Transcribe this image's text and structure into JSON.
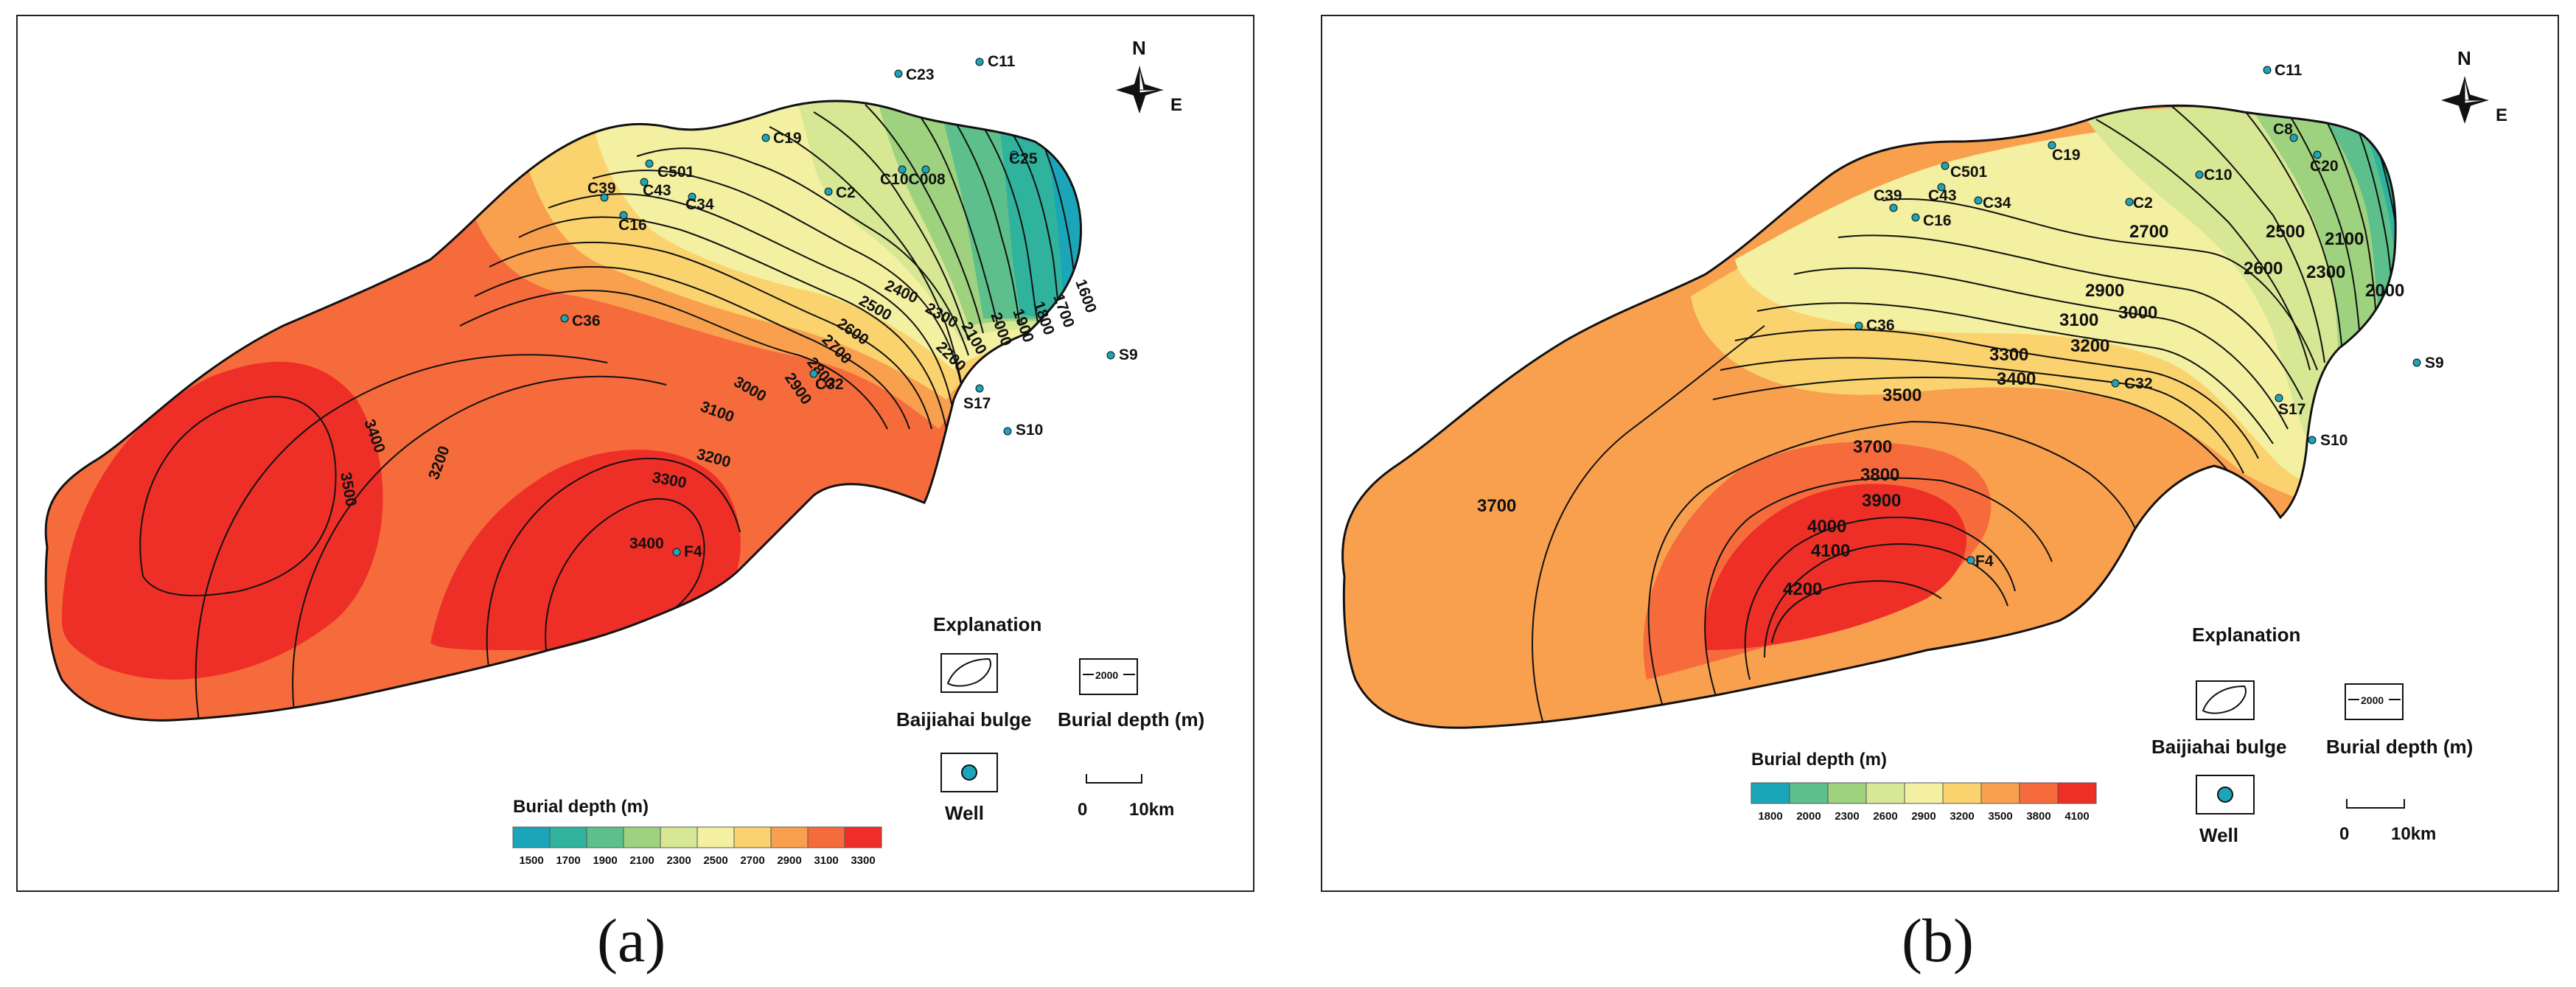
{
  "panels": [
    {
      "id": "a",
      "caption": "(a)",
      "north": "N",
      "east": "E",
      "explanation_title": "Explanation",
      "bulge_label": "Baijiahai  bulge",
      "contour_label": "Burial depth (m)",
      "contour_sample": "2000",
      "well_label": "Well",
      "scale_start": "0",
      "scale_end": "10km",
      "legend_title": "Burial depth (m)",
      "legend": [
        {
          "label": "1500",
          "color": "#1aa5b8"
        },
        {
          "label": "1700",
          "color": "#2fb39d"
        },
        {
          "label": "1900",
          "color": "#5dc08c"
        },
        {
          "label": "2100",
          "color": "#9fd27f"
        },
        {
          "label": "2300",
          "color": "#d7e794"
        },
        {
          "label": "2500",
          "color": "#f3f0a2"
        },
        {
          "label": "2700",
          "color": "#fbd36e"
        },
        {
          "label": "2900",
          "color": "#f9a04f"
        },
        {
          "label": "3100",
          "color": "#f66b3c"
        },
        {
          "label": "3300",
          "color": "#ee2f27"
        }
      ],
      "wells": [
        "C23",
        "C11",
        "C19",
        "C501",
        "C39",
        "C43",
        "C34",
        "C16",
        "C10C008",
        "C25",
        "C2",
        "C36",
        "C32",
        "S9",
        "S17",
        "S10",
        "F4"
      ],
      "contour_labels": [
        "1600",
        "1700",
        "1800",
        "1900",
        "2000",
        "2100",
        "2200",
        "2300",
        "2400",
        "2500",
        "2600",
        "2700",
        "2800",
        "2900",
        "3000",
        "3100",
        "3200",
        "3300",
        "3400",
        "3200",
        "3400",
        "3500"
      ]
    },
    {
      "id": "b",
      "caption": "(b)",
      "north": "N",
      "east": "E",
      "explanation_title": "Explanation",
      "bulge_label": "Baijiahai  bulge",
      "contour_label": "Burial depth (m)",
      "contour_sample": "2000",
      "well_label": "Well",
      "scale_start": "0",
      "scale_end": "10km",
      "legend_title": "Burial depth (m)",
      "legend": [
        {
          "label": "1800",
          "color": "#1aa5b8"
        },
        {
          "label": "2000",
          "color": "#5dc08c"
        },
        {
          "label": "2300",
          "color": "#9fd27f"
        },
        {
          "label": "2600",
          "color": "#d7e794"
        },
        {
          "label": "2900",
          "color": "#f3f0a2"
        },
        {
          "label": "3200",
          "color": "#fbd36e"
        },
        {
          "label": "3500",
          "color": "#f9a04f"
        },
        {
          "label": "3800",
          "color": "#f66b3c"
        },
        {
          "label": "4100",
          "color": "#ee2f27"
        }
      ],
      "wells": [
        "C11",
        "C8",
        "C20",
        "C501",
        "C19",
        "C10",
        "C39",
        "C43",
        "C34",
        "C16",
        "C2",
        "C36",
        "C32",
        "S9",
        "S17",
        "S10",
        "F4"
      ],
      "contour_labels": [
        "2000",
        "2100",
        "2300",
        "2500",
        "2600",
        "2700",
        "2900",
        "3000",
        "3100",
        "3200",
        "3300",
        "3400",
        "3500",
        "3700",
        "3700",
        "3800",
        "3900",
        "4000",
        "4100",
        "4200"
      ]
    }
  ]
}
